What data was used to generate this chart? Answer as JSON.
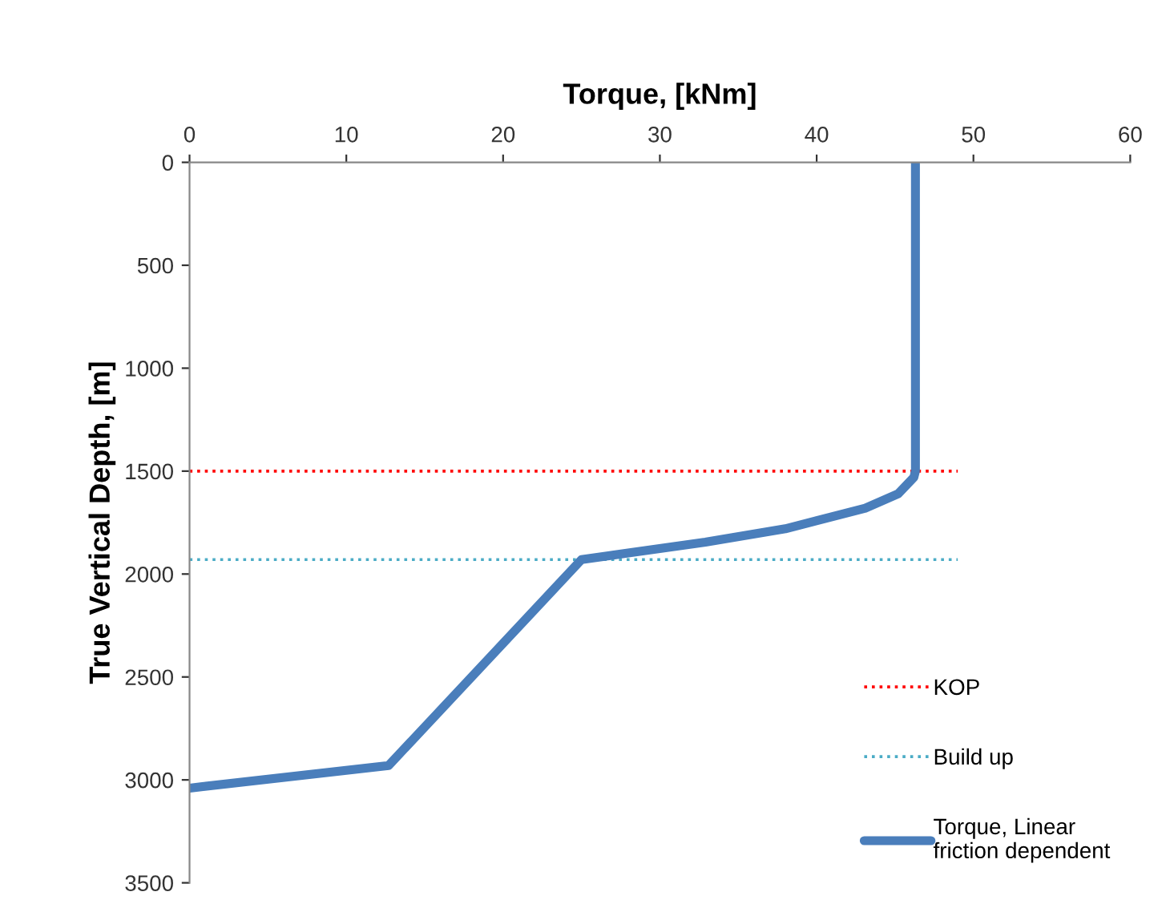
{
  "chart_data": {
    "type": "line",
    "xlabel": "Torque, [kNm]",
    "ylabel": "True Vertical Depth, [m]",
    "xlim": [
      0,
      60
    ],
    "xticks": [
      0,
      10,
      20,
      30,
      40,
      50,
      60
    ],
    "ylim": [
      3500,
      0
    ],
    "yticks": [
      0,
      500,
      1000,
      1500,
      2000,
      2500,
      3000,
      3500
    ],
    "grid": false,
    "legend": "right",
    "series": [
      {
        "name": "KOP",
        "color": "#ff0000",
        "line_style": "dotted",
        "x": [
          0,
          49
        ],
        "values": [
          1500,
          1500
        ]
      },
      {
        "name": "Build up",
        "color": "#4bacc6",
        "line_style": "dotted",
        "x": [
          0,
          49
        ],
        "values": [
          1930,
          1930
        ]
      },
      {
        "name": "Torque, Linear friction dependent",
        "color": "#4a7ebb",
        "line_style": "solid",
        "x": [
          46.3,
          46.3,
          46.2,
          45.2,
          43.1,
          38.0,
          32.9,
          27.8,
          25.0,
          12.7,
          0
        ],
        "values": [
          0,
          1500,
          1530,
          1610,
          1680,
          1780,
          1845,
          1900,
          1930,
          2930,
          3040
        ]
      }
    ]
  }
}
